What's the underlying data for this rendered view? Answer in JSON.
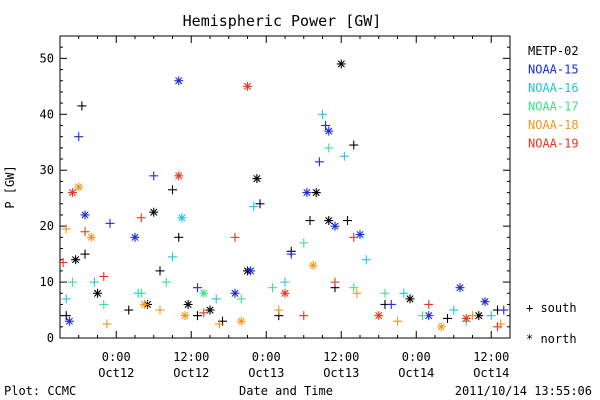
{
  "chart_data": {
    "type": "scatter",
    "title": "Hemispheric Power [GW]",
    "ylabel": "P [GW]",
    "xlabel": "Date and Time",
    "ylim": [
      0,
      54
    ],
    "xlim": [
      "2011-10-11T15:00",
      "2011-10-14T15:00"
    ],
    "yticks": [
      0,
      10,
      20,
      30,
      40,
      50
    ],
    "xticks": [
      {
        "time": "2011-10-12T00:00",
        "label1": "0:00",
        "label2": "Oct12"
      },
      {
        "time": "2011-10-12T12:00",
        "label1": "12:00",
        "label2": "Oct12"
      },
      {
        "time": "2011-10-13T00:00",
        "label1": "0:00",
        "label2": "Oct13"
      },
      {
        "time": "2011-10-13T12:00",
        "label1": "12:00",
        "label2": "Oct13"
      },
      {
        "time": "2011-10-14T00:00",
        "label1": "0:00",
        "label2": "Oct14"
      },
      {
        "time": "2011-10-14T12:00",
        "label1": "12:00",
        "label2": "Oct14"
      }
    ],
    "grid": false,
    "legend_position": "right",
    "marker_legend": [
      {
        "marker": "plus",
        "label": "+ south"
      },
      {
        "marker": "star",
        "label": "* north"
      }
    ],
    "series": [
      {
        "name": "METP-02",
        "color": "#000000",
        "points": [
          [
            "2011-10-11T16:00",
            4,
            "plus"
          ],
          [
            "2011-10-11T17:30",
            14,
            "star"
          ],
          [
            "2011-10-11T18:30",
            41.5,
            "plus"
          ],
          [
            "2011-10-11T19:00",
            15,
            "plus"
          ],
          [
            "2011-10-11T21:00",
            8,
            "star"
          ],
          [
            "2011-10-12T02:00",
            5,
            "plus"
          ],
          [
            "2011-10-12T05:00",
            6,
            "star"
          ],
          [
            "2011-10-12T06:00",
            22.5,
            "star"
          ],
          [
            "2011-10-12T07:00",
            12,
            "plus"
          ],
          [
            "2011-10-12T09:00",
            26.5,
            "plus"
          ],
          [
            "2011-10-12T10:00",
            18,
            "plus"
          ],
          [
            "2011-10-12T11:30",
            6,
            "star"
          ],
          [
            "2011-10-12T13:00",
            4,
            "plus"
          ],
          [
            "2011-10-12T15:00",
            5,
            "star"
          ],
          [
            "2011-10-12T17:00",
            3,
            "plus"
          ],
          [
            "2011-10-12T21:00",
            12,
            "star"
          ],
          [
            "2011-10-12T22:30",
            28.5,
            "star"
          ],
          [
            "2011-10-12T23:00",
            24,
            "plus"
          ],
          [
            "2011-10-13T02:00",
            4,
            "plus"
          ],
          [
            "2011-10-13T04:00",
            15.5,
            "plus"
          ],
          [
            "2011-10-13T07:00",
            21,
            "plus"
          ],
          [
            "2011-10-13T08:00",
            26,
            "star"
          ],
          [
            "2011-10-13T10:00",
            21,
            "star"
          ],
          [
            "2011-10-13T11:00",
            9,
            "plus"
          ],
          [
            "2011-10-13T12:00",
            49,
            "star"
          ],
          [
            "2011-10-13T13:00",
            21,
            "plus"
          ],
          [
            "2011-10-13T14:00",
            34.5,
            "plus"
          ],
          [
            "2011-10-13T19:00",
            6,
            "plus"
          ],
          [
            "2011-10-13T23:00",
            7,
            "star"
          ],
          [
            "2011-10-14T05:00",
            3.5,
            "plus"
          ],
          [
            "2011-10-14T10:00",
            4,
            "star"
          ],
          [
            "2011-10-14T13:00",
            5,
            "plus"
          ]
        ]
      },
      {
        "name": "NOAA-15",
        "color": "#1a2bd8",
        "points": [
          [
            "2011-10-11T16:30",
            3,
            "star"
          ],
          [
            "2011-10-11T18:00",
            36,
            "plus"
          ],
          [
            "2011-10-11T19:00",
            22,
            "star"
          ],
          [
            "2011-10-11T23:00",
            20.5,
            "plus"
          ],
          [
            "2011-10-12T03:00",
            18,
            "star"
          ],
          [
            "2011-10-12T06:00",
            29,
            "plus"
          ],
          [
            "2011-10-12T10:00",
            46,
            "star"
          ],
          [
            "2011-10-12T13:00",
            9,
            "plus"
          ],
          [
            "2011-10-12T19:00",
            8,
            "star"
          ],
          [
            "2011-10-12T21:30",
            12,
            "star"
          ],
          [
            "2011-10-13T04:00",
            15,
            "plus"
          ],
          [
            "2011-10-13T06:30",
            26,
            "star"
          ],
          [
            "2011-10-13T08:30",
            31.5,
            "plus"
          ],
          [
            "2011-10-13T09:30",
            38,
            "plus"
          ],
          [
            "2011-10-13T10:00",
            37,
            "star"
          ],
          [
            "2011-10-13T11:00",
            20,
            "star"
          ],
          [
            "2011-10-13T15:00",
            18.5,
            "star"
          ],
          [
            "2011-10-13T20:00",
            6,
            "plus"
          ],
          [
            "2011-10-14T02:00",
            4,
            "star"
          ],
          [
            "2011-10-14T07:00",
            9,
            "star"
          ],
          [
            "2011-10-14T11:00",
            6.5,
            "star"
          ],
          [
            "2011-10-14T14:00",
            5,
            "plus"
          ]
        ]
      },
      {
        "name": "NOAA-16",
        "color": "#22c3e0",
        "points": [
          [
            "2011-10-11T16:00",
            7,
            "plus"
          ],
          [
            "2011-10-11T20:30",
            10,
            "plus"
          ],
          [
            "2011-10-12T03:30",
            8,
            "plus"
          ],
          [
            "2011-10-12T09:00",
            14.5,
            "plus"
          ],
          [
            "2011-10-12T10:30",
            21.5,
            "star"
          ],
          [
            "2011-10-12T16:00",
            7,
            "plus"
          ],
          [
            "2011-10-12T22:00",
            23.5,
            "plus"
          ],
          [
            "2011-10-13T03:00",
            10,
            "plus"
          ],
          [
            "2011-10-13T09:00",
            40,
            "plus"
          ],
          [
            "2011-10-13T12:30",
            32.5,
            "plus"
          ],
          [
            "2011-10-13T16:00",
            14,
            "plus"
          ],
          [
            "2011-10-13T22:00",
            8,
            "plus"
          ],
          [
            "2011-10-14T06:00",
            5,
            "plus"
          ],
          [
            "2011-10-14T12:00",
            4,
            "plus"
          ]
        ]
      },
      {
        "name": "NOAA-17",
        "color": "#3ce08a",
        "points": [
          [
            "2011-10-11T17:00",
            10,
            "plus"
          ],
          [
            "2011-10-11T22:00",
            6,
            "plus"
          ],
          [
            "2011-10-12T04:00",
            8,
            "plus"
          ],
          [
            "2011-10-12T08:00",
            10,
            "plus"
          ],
          [
            "2011-10-12T14:00",
            8,
            "star"
          ],
          [
            "2011-10-12T20:00",
            7,
            "plus"
          ],
          [
            "2011-10-13T01:00",
            9,
            "plus"
          ],
          [
            "2011-10-13T06:00",
            17,
            "plus"
          ],
          [
            "2011-10-13T10:00",
            34,
            "plus"
          ],
          [
            "2011-10-13T14:00",
            9,
            "plus"
          ],
          [
            "2011-10-13T19:00",
            8,
            "plus"
          ],
          [
            "2011-10-14T01:00",
            4,
            "plus"
          ],
          [
            "2011-10-14T08:00",
            3,
            "plus"
          ]
        ]
      },
      {
        "name": "NOAA-18",
        "color": "#f0961e",
        "points": [
          [
            "2011-10-11T16:00",
            19.5,
            "plus"
          ],
          [
            "2011-10-11T18:00",
            27,
            "star"
          ],
          [
            "2011-10-11T20:00",
            18,
            "star"
          ],
          [
            "2011-10-11T22:30",
            2.5,
            "plus"
          ],
          [
            "2011-10-12T04:30",
            6,
            "star"
          ],
          [
            "2011-10-12T07:00",
            5,
            "plus"
          ],
          [
            "2011-10-12T11:00",
            4,
            "star"
          ],
          [
            "2011-10-12T16:30",
            2.5,
            "plus"
          ],
          [
            "2011-10-12T20:00",
            3,
            "star"
          ],
          [
            "2011-10-13T02:00",
            5,
            "plus"
          ],
          [
            "2011-10-13T07:30",
            13,
            "star"
          ],
          [
            "2011-10-13T14:30",
            8,
            "plus"
          ],
          [
            "2011-10-13T21:00",
            3,
            "plus"
          ],
          [
            "2011-10-14T04:00",
            2,
            "star"
          ],
          [
            "2011-10-14T09:00",
            4,
            "plus"
          ],
          [
            "2011-10-14T13:30",
            2.5,
            "plus"
          ]
        ]
      },
      {
        "name": "NOAA-19",
        "color": "#e8361c",
        "points": [
          [
            "2011-10-11T15:30",
            13.5,
            "plus"
          ],
          [
            "2011-10-11T17:00",
            26,
            "star"
          ],
          [
            "2011-10-11T19:00",
            19,
            "plus"
          ],
          [
            "2011-10-11T22:00",
            11,
            "plus"
          ],
          [
            "2011-10-12T04:00",
            21.5,
            "plus"
          ],
          [
            "2011-10-12T10:00",
            29,
            "star"
          ],
          [
            "2011-10-12T14:00",
            4.5,
            "plus"
          ],
          [
            "2011-10-12T19:00",
            18,
            "plus"
          ],
          [
            "2011-10-12T21:00",
            45,
            "star"
          ],
          [
            "2011-10-13T03:00",
            8,
            "star"
          ],
          [
            "2011-10-13T06:00",
            4,
            "plus"
          ],
          [
            "2011-10-13T11:00",
            10,
            "plus"
          ],
          [
            "2011-10-13T14:00",
            18,
            "plus"
          ],
          [
            "2011-10-13T18:00",
            4,
            "star"
          ],
          [
            "2011-10-14T02:00",
            6,
            "plus"
          ],
          [
            "2011-10-14T08:00",
            3.5,
            "star"
          ],
          [
            "2011-10-14T13:00",
            2,
            "plus"
          ]
        ]
      }
    ]
  },
  "footer": {
    "plot_credit": "Plot: CCMC",
    "timestamp": "2011/10/14 13:55:06"
  }
}
